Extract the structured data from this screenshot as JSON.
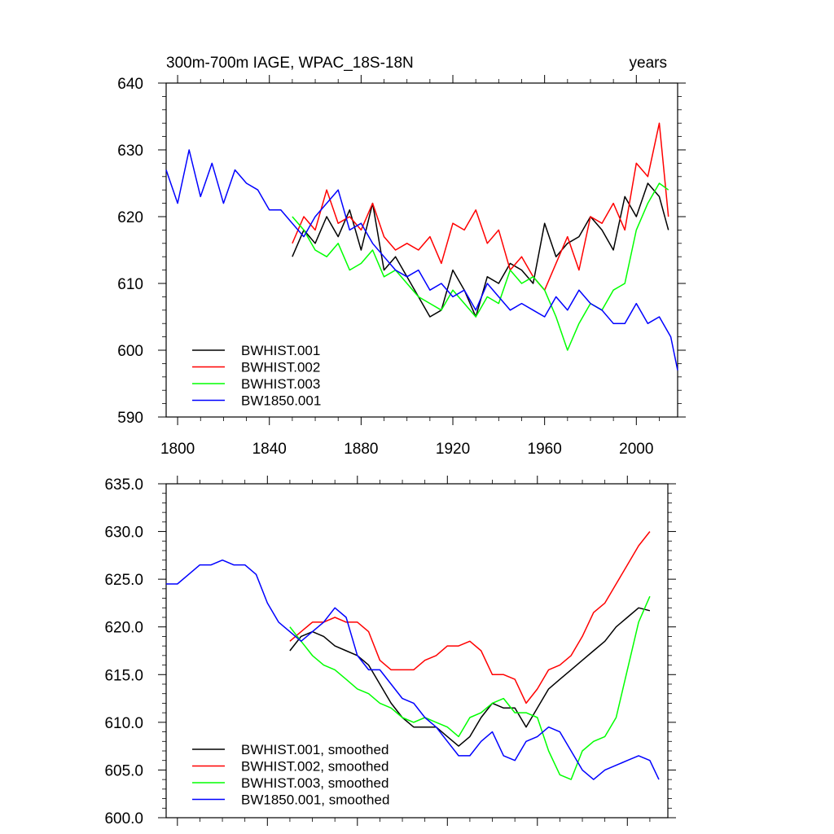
{
  "chart_data": [
    {
      "type": "line",
      "title": "300m-700m IAGE, WPAC_18S-18N",
      "title_right": "years",
      "xlim": [
        1795,
        2018
      ],
      "ylim": [
        590,
        640
      ],
      "xticks": [
        1800,
        1840,
        1880,
        1920,
        1960,
        2000
      ],
      "xtick_labels": [
        "1800",
        "1840",
        "1880",
        "1920",
        "1960",
        "2000"
      ],
      "yticks": [
        590,
        600,
        610,
        620,
        630,
        640
      ],
      "ytick_labels": [
        "590",
        "600",
        "610",
        "620",
        "630",
        "640"
      ],
      "legend_position": "bottom-left",
      "series": [
        {
          "name": "BWHIST.001",
          "color": "#000000",
          "x": [
            1850,
            1855,
            1860,
            1865,
            1870,
            1875,
            1880,
            1885,
            1890,
            1895,
            1900,
            1905,
            1910,
            1915,
            1920,
            1925,
            1930,
            1935,
            1940,
            1945,
            1950,
            1955,
            1960,
            1965,
            1970,
            1975,
            1980,
            1985,
            1990,
            1995,
            2000,
            2005,
            2010,
            2014
          ],
          "y": [
            614,
            618,
            616,
            620,
            617,
            621,
            615,
            622,
            612,
            614,
            611,
            608,
            605,
            606,
            612,
            609,
            605,
            611,
            610,
            613,
            612,
            610,
            619,
            614,
            616,
            617,
            620,
            618,
            615,
            623,
            620,
            625,
            623,
            618
          ]
        },
        {
          "name": "BWHIST.002",
          "color": "#ff0000",
          "x": [
            1850,
            1855,
            1860,
            1865,
            1870,
            1875,
            1880,
            1885,
            1890,
            1895,
            1900,
            1905,
            1910,
            1915,
            1920,
            1925,
            1930,
            1935,
            1940,
            1945,
            1950,
            1955,
            1960,
            1965,
            1970,
            1975,
            1980,
            1985,
            1990,
            1995,
            2000,
            2005,
            2010,
            2014
          ],
          "y": [
            616,
            620,
            618,
            624,
            619,
            620,
            618,
            622,
            617,
            615,
            616,
            615,
            617,
            613,
            619,
            618,
            621,
            616,
            618,
            612,
            614,
            611,
            609,
            613,
            617,
            612,
            620,
            619,
            622,
            618,
            628,
            626,
            634,
            620
          ]
        },
        {
          "name": "BWHIST.003",
          "color": "#00ff00",
          "x": [
            1850,
            1855,
            1860,
            1865,
            1870,
            1875,
            1880,
            1885,
            1890,
            1895,
            1900,
            1905,
            1910,
            1915,
            1920,
            1925,
            1930,
            1935,
            1940,
            1945,
            1950,
            1955,
            1960,
            1965,
            1970,
            1975,
            1980,
            1985,
            1990,
            1995,
            2000,
            2005,
            2010,
            2014
          ],
          "y": [
            620,
            618,
            615,
            614,
            616,
            612,
            613,
            615,
            611,
            612,
            610,
            608,
            607,
            606,
            609,
            607,
            605,
            608,
            607,
            612,
            610,
            611,
            609,
            605,
            600,
            604,
            607,
            606,
            609,
            610,
            618,
            622,
            625,
            624
          ]
        },
        {
          "name": "BW1850.001",
          "color": "#0000ff",
          "x": [
            1795,
            1800,
            1805,
            1810,
            1815,
            1820,
            1825,
            1830,
            1835,
            1840,
            1845,
            1850,
            1855,
            1860,
            1865,
            1870,
            1875,
            1880,
            1885,
            1890,
            1895,
            1900,
            1905,
            1910,
            1915,
            1920,
            1925,
            1930,
            1935,
            1940,
            1945,
            1950,
            1955,
            1960,
            1965,
            1970,
            1975,
            1980,
            1985,
            1990,
            1995,
            2000,
            2005,
            2010,
            2015,
            2018
          ],
          "y": [
            627,
            622,
            630,
            623,
            628,
            622,
            627,
            625,
            624,
            621,
            621,
            619,
            617,
            620,
            622,
            624,
            618,
            619,
            616,
            614,
            612,
            611,
            612,
            609,
            610,
            608,
            609,
            606,
            610,
            608,
            606,
            607,
            606,
            605,
            608,
            606,
            609,
            607,
            606,
            604,
            604,
            607,
            604,
            605,
            602,
            597
          ]
        }
      ]
    },
    {
      "type": "line",
      "title": "",
      "xlim": [
        1795,
        2018
      ],
      "ylim": [
        600.0,
        635.0
      ],
      "xticks": [
        1800,
        1840,
        1880,
        1920,
        1960,
        2000
      ],
      "yticks": [
        600.0,
        605.0,
        610.0,
        615.0,
        620.0,
        625.0,
        630.0,
        635.0
      ],
      "ytick_labels": [
        "600.0",
        "605.0",
        "610.0",
        "615.0",
        "620.0",
        "625.0",
        "630.0",
        "635.0"
      ],
      "legend_position": "bottom-left",
      "series": [
        {
          "name": "BWHIST.001, smoothed",
          "color": "#000000",
          "x": [
            1850,
            1855,
            1860,
            1865,
            1870,
            1875,
            1880,
            1885,
            1890,
            1895,
            1900,
            1905,
            1910,
            1915,
            1920,
            1925,
            1930,
            1935,
            1940,
            1945,
            1950,
            1955,
            1960,
            1965,
            1970,
            1975,
            1980,
            1985,
            1990,
            1995,
            2000,
            2005,
            2010
          ],
          "y": [
            617.5,
            619.0,
            619.5,
            619.0,
            618.0,
            617.5,
            617.0,
            616.0,
            614.0,
            612.0,
            610.5,
            609.5,
            609.5,
            609.5,
            608.5,
            607.5,
            608.5,
            610.5,
            612.0,
            611.5,
            611.5,
            609.5,
            611.5,
            613.5,
            614.5,
            615.5,
            616.5,
            617.5,
            618.5,
            620.0,
            621.0,
            622.0,
            621.7
          ]
        },
        {
          "name": "BWHIST.002, smoothed",
          "color": "#ff0000",
          "x": [
            1850,
            1855,
            1860,
            1865,
            1870,
            1875,
            1880,
            1885,
            1890,
            1895,
            1900,
            1905,
            1910,
            1915,
            1920,
            1925,
            1930,
            1935,
            1940,
            1945,
            1950,
            1955,
            1960,
            1965,
            1970,
            1975,
            1980,
            1985,
            1990,
            1995,
            2000,
            2005,
            2010
          ],
          "y": [
            618.5,
            619.5,
            620.5,
            620.5,
            621.0,
            620.5,
            620.5,
            619.5,
            616.5,
            615.5,
            615.5,
            615.5,
            616.5,
            617.0,
            618.0,
            618.0,
            618.5,
            617.5,
            615.0,
            615.0,
            614.5,
            612.0,
            613.5,
            615.5,
            616.0,
            617.0,
            619.0,
            621.5,
            622.5,
            624.5,
            626.5,
            628.5,
            630.0
          ]
        },
        {
          "name": "BWHIST.003, smoothed",
          "color": "#00ff00",
          "x": [
            1850,
            1855,
            1860,
            1865,
            1870,
            1875,
            1880,
            1885,
            1890,
            1895,
            1900,
            1905,
            1910,
            1915,
            1920,
            1925,
            1930,
            1935,
            1940,
            1945,
            1950,
            1955,
            1960,
            1965,
            1970,
            1975,
            1980,
            1985,
            1990,
            1995,
            2000,
            2005,
            2010
          ],
          "y": [
            620.0,
            618.5,
            617.0,
            616.0,
            615.5,
            614.5,
            613.5,
            613.0,
            612.0,
            611.5,
            610.5,
            610.0,
            610.5,
            610.0,
            609.5,
            608.5,
            610.5,
            611.0,
            612.0,
            612.5,
            611.0,
            611.0,
            610.5,
            607.0,
            604.5,
            604.0,
            607.0,
            608.0,
            608.5,
            610.5,
            615.5,
            620.5,
            623.2
          ]
        },
        {
          "name": "BW1850.001, smoothed",
          "color": "#0000ff",
          "x": [
            1795,
            1800,
            1805,
            1810,
            1815,
            1820,
            1825,
            1830,
            1835,
            1840,
            1845,
            1850,
            1855,
            1860,
            1865,
            1870,
            1875,
            1880,
            1885,
            1890,
            1895,
            1900,
            1905,
            1910,
            1915,
            1920,
            1925,
            1930,
            1935,
            1940,
            1945,
            1950,
            1955,
            1960,
            1965,
            1970,
            1975,
            1980,
            1985,
            1990,
            1995,
            2000,
            2005,
            2010,
            2014
          ],
          "y": [
            624.5,
            624.5,
            625.5,
            626.5,
            626.5,
            627.0,
            626.5,
            626.5,
            625.5,
            622.5,
            620.5,
            619.5,
            618.5,
            619.5,
            620.5,
            622.0,
            621.0,
            617.0,
            615.5,
            615.5,
            614.0,
            612.5,
            612.0,
            610.5,
            609.5,
            608.0,
            606.5,
            606.5,
            608.0,
            609.0,
            606.5,
            606.0,
            608.0,
            608.5,
            609.5,
            609.0,
            607.0,
            605.0,
            604.0,
            605.0,
            605.5,
            606.0,
            606.5,
            606.0,
            604.0
          ]
        }
      ]
    }
  ]
}
